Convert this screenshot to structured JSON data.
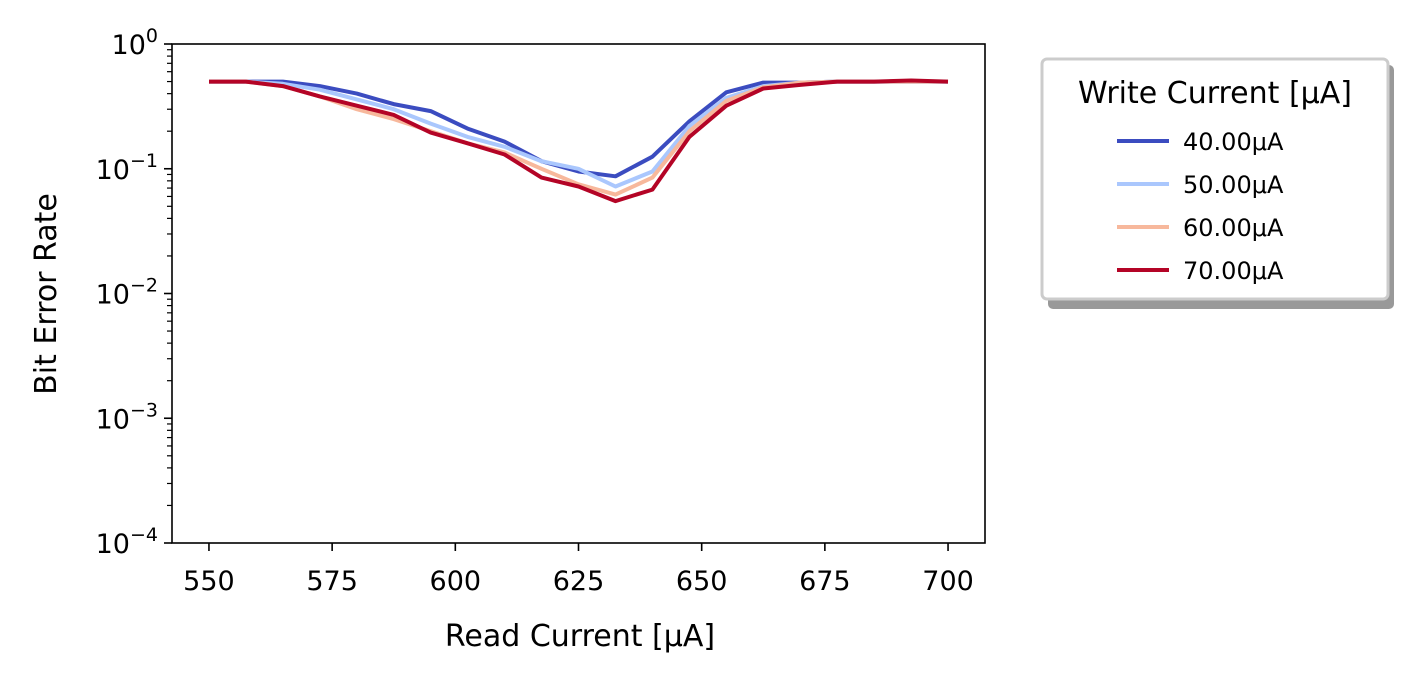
{
  "chart_data": {
    "type": "line",
    "title": "",
    "xlabel": "Read Current [μA]",
    "ylabel": "Bit Error Rate",
    "yscale": "log",
    "xlim": [
      542.5,
      707.5
    ],
    "ylim": [
      0.0001,
      1
    ],
    "xticks": [
      550,
      575,
      600,
      625,
      650,
      675,
      700
    ],
    "xtick_labels": [
      "550",
      "575",
      "600",
      "625",
      "650",
      "675",
      "700"
    ],
    "yticks": [
      0.0001,
      0.001,
      0.01,
      0.1,
      1
    ],
    "ytick_labels": [
      {
        "base": "10",
        "exp": "−4"
      },
      {
        "base": "10",
        "exp": "−3"
      },
      {
        "base": "10",
        "exp": "−2"
      },
      {
        "base": "10",
        "exp": "−1"
      },
      {
        "base": "10",
        "exp": "0"
      }
    ],
    "grid": false,
    "legend": {
      "title": "Write Current [μA]",
      "placement": "outside-top-right"
    },
    "x": [
      550,
      557.5,
      565,
      572.5,
      580,
      587.5,
      595,
      602.5,
      610,
      617.5,
      625,
      632.5,
      640,
      647.5,
      655,
      662.5,
      670,
      677.5,
      685,
      692.5,
      700
    ],
    "series": [
      {
        "name": "40.00μA",
        "color": "#3b4cc0",
        "values": [
          0.5,
          0.5,
          0.5,
          0.46,
          0.4,
          0.33,
          0.29,
          0.21,
          0.165,
          0.115,
          0.095,
          0.087,
          0.125,
          0.24,
          0.41,
          0.49,
          0.49,
          0.5,
          0.5,
          0.5,
          0.5
        ]
      },
      {
        "name": "50.00μA",
        "color": "#aac7fd",
        "values": [
          0.5,
          0.5,
          0.48,
          0.43,
          0.36,
          0.3,
          0.23,
          0.18,
          0.15,
          0.115,
          0.1,
          0.072,
          0.095,
          0.22,
          0.37,
          0.46,
          0.49,
          0.5,
          0.5,
          0.5,
          0.5
        ]
      },
      {
        "name": "60.00μA",
        "color": "#f7b89c",
        "values": [
          0.5,
          0.5,
          0.46,
          0.38,
          0.3,
          0.25,
          0.2,
          0.16,
          0.135,
          0.1,
          0.075,
          0.062,
          0.085,
          0.2,
          0.35,
          0.45,
          0.49,
          0.5,
          0.5,
          0.5,
          0.5
        ]
      },
      {
        "name": "70.00μA",
        "color": "#b40426",
        "values": [
          0.5,
          0.5,
          0.46,
          0.38,
          0.32,
          0.27,
          0.195,
          0.16,
          0.13,
          0.085,
          0.072,
          0.055,
          0.068,
          0.18,
          0.32,
          0.44,
          0.47,
          0.5,
          0.5,
          0.51,
          0.5
        ]
      }
    ]
  }
}
